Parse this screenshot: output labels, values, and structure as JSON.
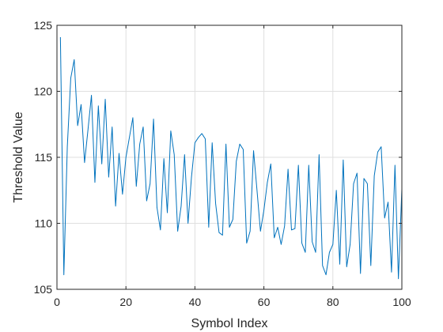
{
  "chart_data": {
    "type": "line",
    "title": "",
    "xlabel": "Symbol Index",
    "ylabel": "Threshold Value",
    "xlim": [
      0,
      100
    ],
    "ylim": [
      105,
      125
    ],
    "x_ticks": [
      0,
      20,
      40,
      60,
      80,
      100
    ],
    "y_ticks": [
      105,
      110,
      115,
      120,
      125
    ],
    "grid": true,
    "line_color": "#0072BD",
    "series": [
      {
        "x": [
          1,
          2,
          3,
          4,
          5,
          6,
          7,
          8,
          9,
          10,
          11,
          12,
          13,
          14,
          15,
          16,
          17,
          18,
          19,
          20,
          21,
          22,
          23,
          24,
          25,
          26,
          27,
          28,
          29,
          30,
          31,
          32,
          33,
          34,
          35,
          36,
          37,
          38,
          39,
          40,
          41,
          42,
          43,
          44,
          45,
          46,
          47,
          48,
          49,
          50,
          51,
          52,
          53,
          54,
          55,
          56,
          57,
          58,
          59,
          60,
          61,
          62,
          63,
          64,
          65,
          66,
          67,
          68,
          69,
          70,
          71,
          72,
          73,
          74,
          75,
          76,
          77,
          78,
          79,
          80,
          81,
          82,
          83,
          84,
          85,
          86,
          87,
          88,
          89,
          90,
          91,
          92,
          93,
          94,
          95,
          96,
          97,
          98,
          99,
          100
        ],
        "values": [
          124.1,
          106.1,
          115.8,
          121.0,
          122.4,
          117.4,
          119.0,
          114.6,
          117.1,
          119.7,
          113.1,
          118.9,
          114.5,
          119.4,
          113.5,
          117.3,
          111.3,
          115.3,
          112.2,
          115.0,
          116.5,
          118.0,
          112.8,
          116.0,
          117.3,
          111.7,
          113.0,
          117.9,
          111.2,
          109.5,
          114.9,
          110.8,
          117.0,
          115.2,
          109.4,
          111.3,
          115.2,
          110.0,
          113.5,
          116.1,
          116.5,
          116.8,
          116.4,
          109.7,
          116.1,
          111.5,
          109.3,
          109.1,
          116.0,
          109.7,
          110.3,
          114.7,
          116.0,
          115.6,
          108.5,
          109.4,
          115.5,
          112.5,
          109.4,
          111.0,
          113.1,
          114.5,
          108.9,
          109.7,
          108.4,
          109.8,
          114.1,
          109.5,
          109.6,
          114.4,
          108.5,
          107.8,
          114.4,
          108.6,
          107.8,
          115.2,
          106.8,
          106.1,
          107.8,
          108.4,
          112.5,
          106.9,
          114.8,
          106.7,
          108.4,
          113.0,
          113.8,
          106.2,
          113.4,
          113.0,
          106.8,
          113.6,
          115.4,
          115.8,
          110.4,
          111.6,
          106.3,
          114.4,
          105.8,
          112.6
        ]
      }
    ]
  }
}
